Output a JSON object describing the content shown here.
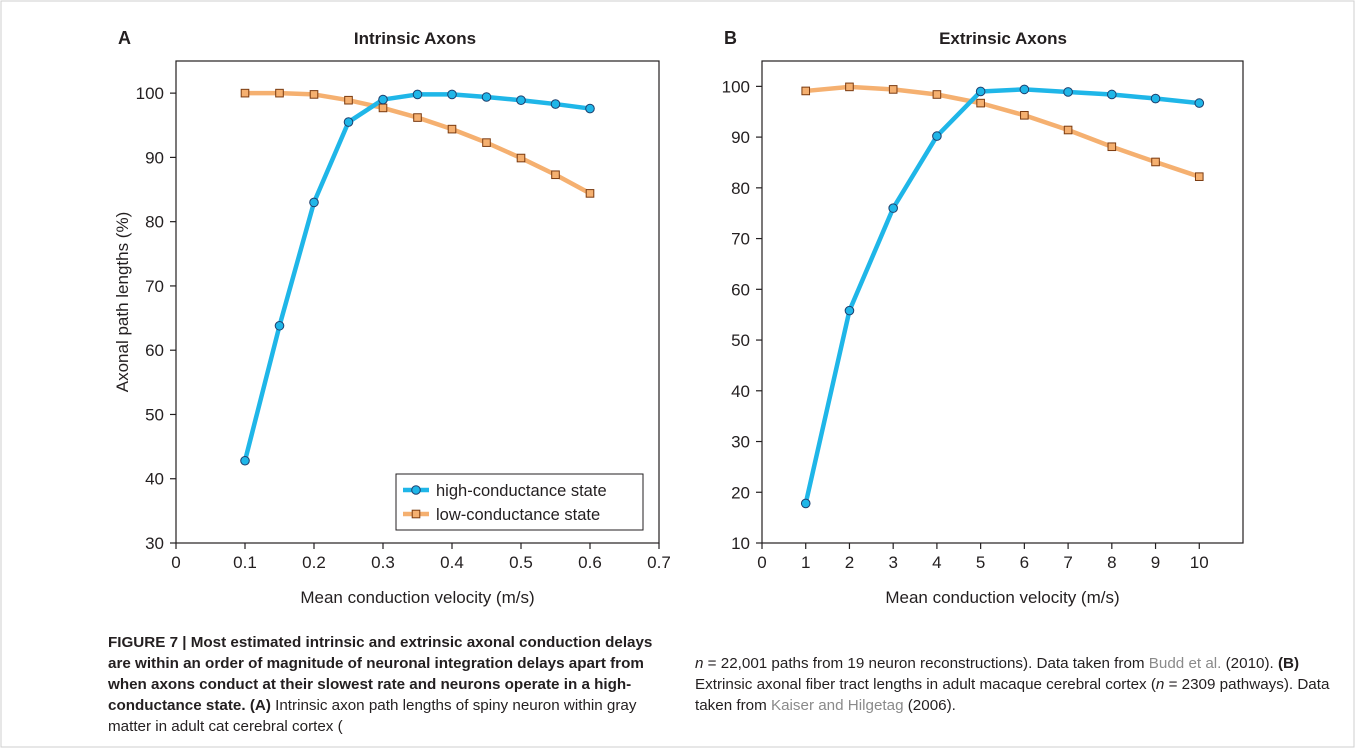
{
  "colors": {
    "high": "#1fb6e8",
    "low": "#f5b070",
    "high_marker_stroke": "#1d3f6e",
    "low_marker_stroke": "#7a3a10",
    "axis": "#231f20"
  },
  "chart_data": [
    {
      "type": "line",
      "panel_letter": "A",
      "title": "Intrinsic Axons",
      "xlabel": "Mean conduction velocity (m/s)",
      "ylabel": "Axonal path lengths (%)",
      "xlim": [
        0,
        0.7
      ],
      "ylim": [
        30,
        105
      ],
      "x_ticks": [
        0,
        0.1,
        0.2,
        0.3,
        0.4,
        0.5,
        0.6,
        0.7
      ],
      "x_tick_labels": [
        "0",
        "0.1",
        "0.2",
        "0.3",
        "0.4",
        "0.5",
        "0.6",
        "0.7"
      ],
      "y_ticks": [
        30,
        40,
        50,
        60,
        70,
        80,
        90,
        100
      ],
      "y_tick_labels": [
        "30",
        "40",
        "50",
        "60",
        "70",
        "80",
        "90",
        "100"
      ],
      "grid": false,
      "legend_position": "bottom-right",
      "x": [
        0.1,
        0.15,
        0.2,
        0.25,
        0.3,
        0.35,
        0.4,
        0.45,
        0.5,
        0.55,
        0.6
      ],
      "series": [
        {
          "name": "high-conductance state",
          "marker": "circle",
          "values": [
            42.8,
            63.8,
            83.0,
            95.5,
            99.0,
            99.8,
            99.8,
            99.4,
            98.9,
            98.3,
            97.6
          ]
        },
        {
          "name": "low-conductance state",
          "marker": "square",
          "values": [
            100.0,
            100.0,
            99.8,
            98.9,
            97.7,
            96.2,
            94.4,
            92.3,
            89.9,
            87.3,
            84.4
          ]
        }
      ]
    },
    {
      "type": "line",
      "panel_letter": "B",
      "title": "Extrinsic Axons",
      "xlabel": "Mean conduction velocity (m/s)",
      "ylabel": "",
      "xlim": [
        0,
        11
      ],
      "ylim": [
        10,
        105
      ],
      "x_ticks": [
        0,
        1,
        2,
        3,
        4,
        5,
        6,
        7,
        8,
        9,
        10
      ],
      "x_tick_labels": [
        "0",
        "1",
        "2",
        "3",
        "4",
        "5",
        "6",
        "7",
        "8",
        "9",
        "10"
      ],
      "y_ticks": [
        10,
        20,
        30,
        40,
        50,
        60,
        70,
        80,
        90,
        100
      ],
      "y_tick_labels": [
        "10",
        "20",
        "30",
        "40",
        "50",
        "60",
        "70",
        "80",
        "90",
        "100"
      ],
      "grid": false,
      "legend_position": "none",
      "x": [
        1,
        2,
        3,
        4,
        5,
        6,
        7,
        8,
        9,
        10
      ],
      "series": [
        {
          "name": "high-conductance state",
          "marker": "circle",
          "values": [
            17.8,
            55.8,
            76.0,
            90.2,
            99.0,
            99.4,
            98.9,
            98.4,
            97.6,
            96.7
          ]
        },
        {
          "name": "low-conductance state",
          "marker": "square",
          "values": [
            99.1,
            99.9,
            99.4,
            98.4,
            96.7,
            94.3,
            91.4,
            88.1,
            85.1,
            82.2
          ]
        }
      ]
    }
  ],
  "caption": {
    "lead": "FIGURE 7 | Most estimated intrinsic and extrinsic axonal conduction delays are within an order of magnitude of neuronal integration delays apart from when axons conduct at their slowest rate and neurons operate in a high-conductance state.",
    "label_a": "(A)",
    "text_a1": "Intrinsic axon path lengths of spiny neuron within gray matter in adult cat cerebral cortex (",
    "n_a_symbol": "n",
    "n_a_rest": " = 22,001 paths from 19 neuron reconstructions). Data taken from ",
    "ref_a": "Budd et al.",
    "ref_a_year": " (2010).",
    "label_b": "(B)",
    "text_b1": "Extrinsic axonal fiber tract lengths in adult macaque cerebral cortex (",
    "n_b_symbol": "n",
    "n_b_rest": " = 2309 pathways). Data taken from ",
    "ref_b": "Kaiser and Hilgetag",
    "ref_b_year": " (2006)."
  }
}
